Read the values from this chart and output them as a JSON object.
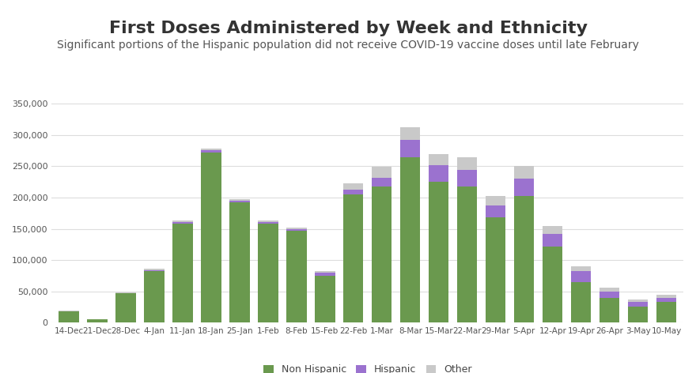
{
  "title": "First Doses Administered by Week and Ethnicity",
  "subtitle": "Significant portions of the Hispanic population did not receive COVID-19 vaccine doses until late February",
  "categories": [
    "14-Dec",
    "21-Dec",
    "28-Dec",
    "4-Jan",
    "11-Jan",
    "18-Jan",
    "25-Jan",
    "1-Feb",
    "8-Feb",
    "15-Feb",
    "22-Feb",
    "1-Mar",
    "8-Mar",
    "15-Mar",
    "22-Mar",
    "29-Mar",
    "5-Apr",
    "12-Apr",
    "19-Apr",
    "26-Apr",
    "3-May",
    "10-May"
  ],
  "non_hispanic": [
    18000,
    5000,
    47000,
    82000,
    158000,
    272000,
    192000,
    158000,
    147000,
    75000,
    205000,
    218000,
    265000,
    225000,
    218000,
    168000,
    202000,
    122000,
    65000,
    40000,
    26000,
    33000
  ],
  "hispanic": [
    0,
    0,
    0,
    2000,
    3000,
    4000,
    3000,
    3000,
    3000,
    5000,
    8000,
    13000,
    27000,
    27000,
    26000,
    20000,
    28000,
    20000,
    18000,
    10000,
    7000,
    7000
  ],
  "other": [
    2000,
    1000,
    2000,
    2000,
    2000,
    2000,
    2000,
    2000,
    2000,
    3000,
    10000,
    18000,
    20000,
    18000,
    20000,
    15000,
    20000,
    13000,
    7000,
    6000,
    4000,
    5000
  ],
  "color_non_hispanic": "#6a994e",
  "color_hispanic": "#9b72cf",
  "color_other": "#c9c9c9",
  "ylim": [
    0,
    350000
  ],
  "yticks": [
    0,
    50000,
    100000,
    150000,
    200000,
    250000,
    300000,
    350000
  ],
  "background_color": "#ffffff",
  "title_fontsize": 16,
  "subtitle_fontsize": 10,
  "bar_width": 0.7
}
